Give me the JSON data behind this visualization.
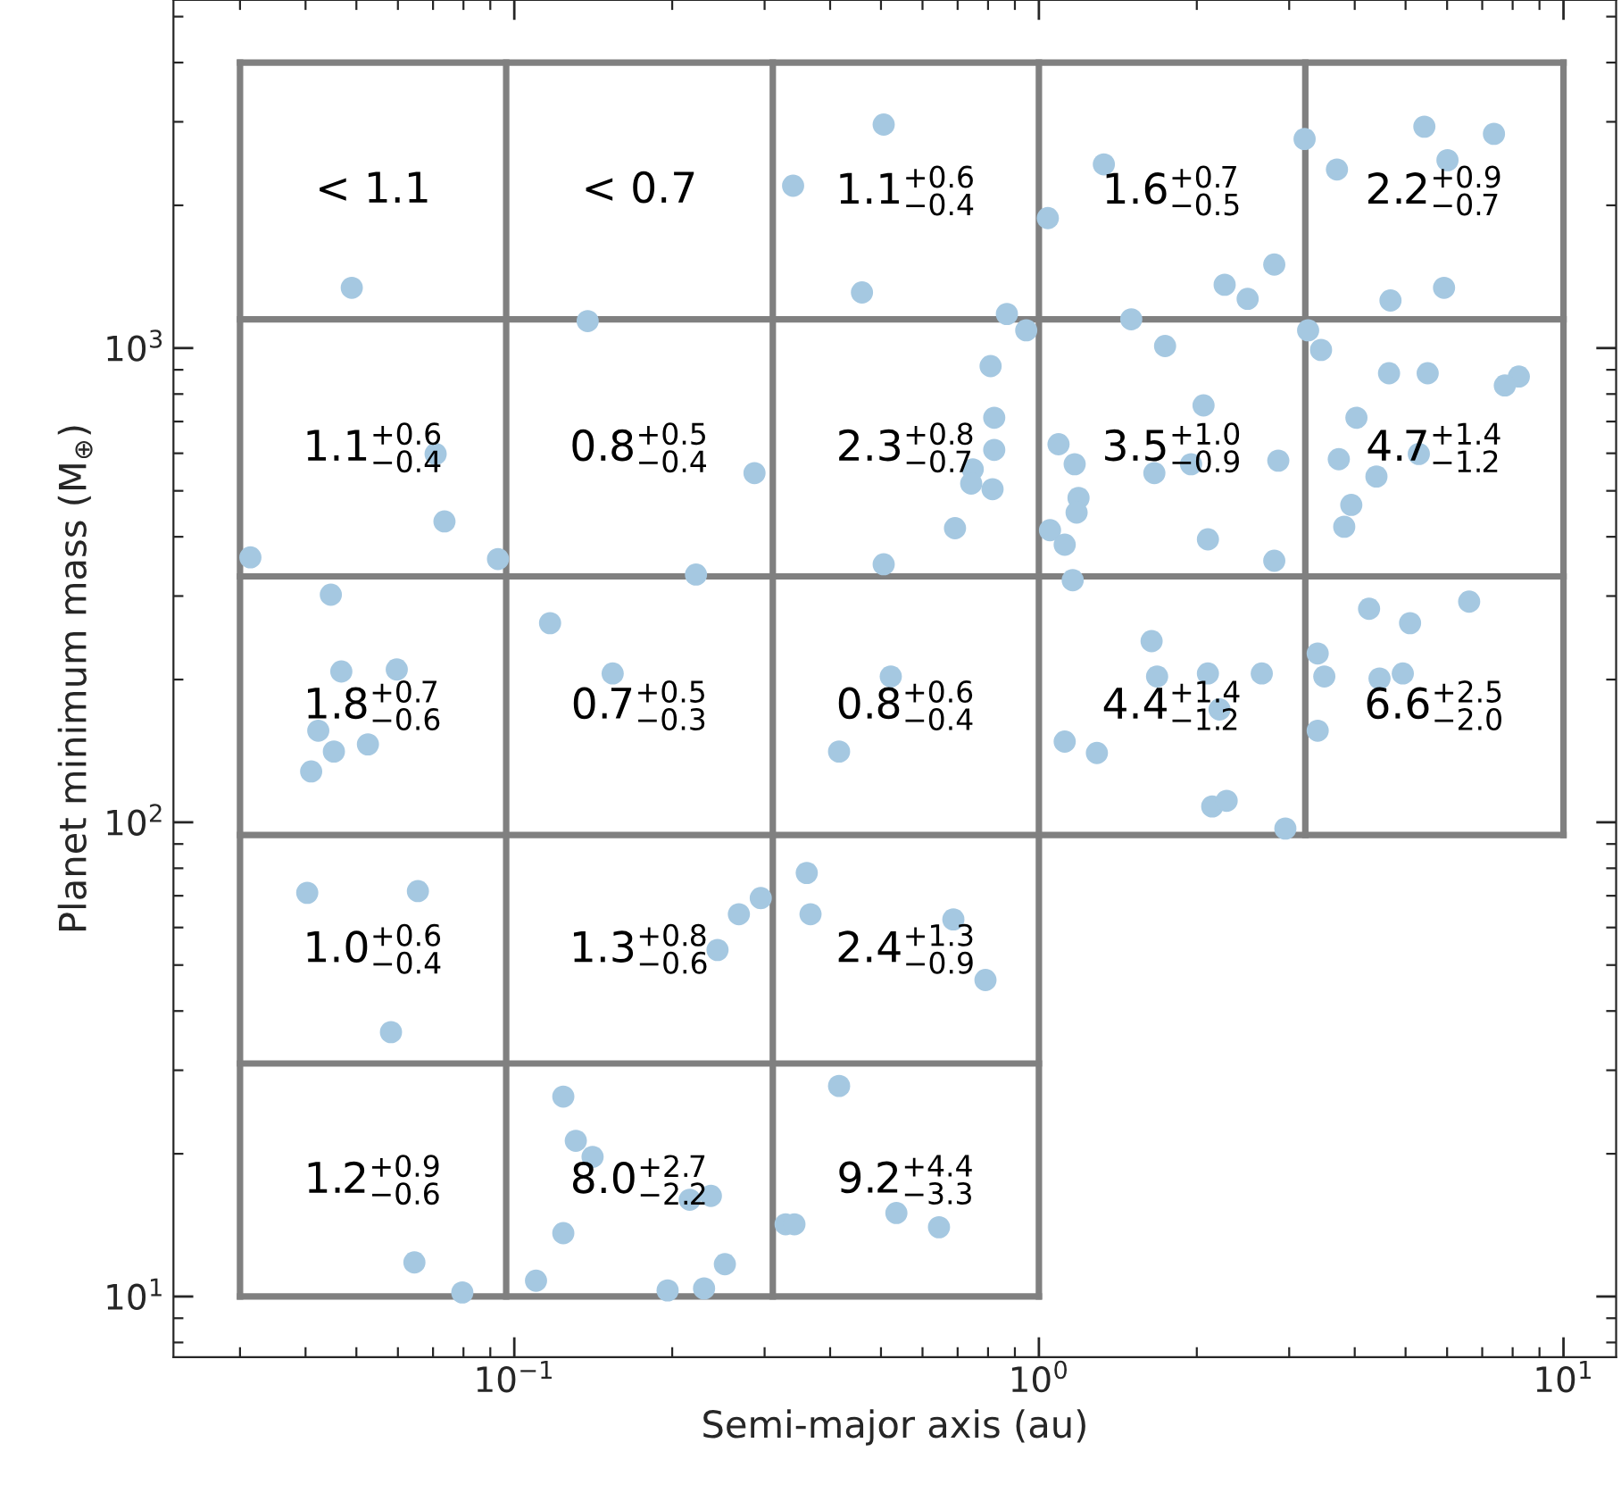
{
  "chart_data": {
    "type": "scatter",
    "xlabel": "Semi-major axis (au)",
    "ylabel": "Planet minimum mass (M$_{⊕}$)",
    "log": "xy",
    "xlim": [
      0.0224,
      12.6
    ],
    "ylim": [
      7.45,
      5420
    ],
    "xticks": [
      {
        "value": 0.1,
        "label": "10$^{−1}$"
      },
      {
        "value": 1,
        "label": "10$^{0}$"
      },
      {
        "value": 10,
        "label": "10$^{1}$"
      }
    ],
    "yticks": [
      {
        "value": 10,
        "label": "10$^{1}$"
      },
      {
        "value": 100,
        "label": "10$^{2}$"
      },
      {
        "value": 1000,
        "label": "10$^{3}$"
      }
    ],
    "series": [
      {
        "marker": "circle",
        "color": "#a5c8e1",
        "x": [
          0.049,
          0.138,
          0.34,
          0.506,
          0.46,
          0.869,
          0.946,
          1.33,
          1.04,
          2.81,
          2.26,
          2.5,
          3.21,
          3.7,
          5.43,
          7.37,
          6.01,
          4.68,
          5.92,
          1.5,
          1.74,
          0.809,
          0.822,
          0.822,
          0.748,
          0.743,
          0.816,
          0.692,
          0.506,
          0.287,
          1.09,
          1.17,
          1.66,
          1.95,
          2.06,
          2.86,
          1.19,
          1.18,
          1.05,
          1.12,
          2.1,
          2.81,
          3.26,
          3.45,
          4.65,
          5.51,
          8.22,
          7.73,
          4.03,
          3.73,
          5.3,
          4.4,
          3.94,
          3.82,
          0.0314,
          0.0736,
          0.0708,
          0.0931,
          0.222,
          0.0447,
          0.0468,
          0.0597,
          0.0423,
          0.0453,
          0.0526,
          0.041,
          0.117,
          0.154,
          0.522,
          0.416,
          1.16,
          1.64,
          1.68,
          2.1,
          2.66,
          2.21,
          1.12,
          1.29,
          2.14,
          2.28,
          2.95,
          4.26,
          6.61,
          5.1,
          3.4,
          3.5,
          4.46,
          4.94,
          3.4,
          0.0403,
          0.0655,
          0.0582,
          0.361,
          0.367,
          0.295,
          0.268,
          0.244,
          0.687,
          0.791,
          0.124,
          0.131,
          0.141,
          0.216,
          0.237,
          0.124,
          0.11,
          0.196,
          0.23,
          0.252,
          0.0645,
          0.0796,
          0.329,
          0.342,
          0.416,
          0.535,
          0.645
        ],
        "values": [
          1340,
          1140,
          2200,
          2960,
          1310,
          1180,
          1090,
          2440,
          1880,
          1500,
          1360,
          1270,
          2760,
          2380,
          2930,
          2830,
          2490,
          1260,
          1340,
          1150,
          1010,
          916,
          713,
          610,
          555,
          518,
          504,
          417,
          350,
          545,
          627,
          569,
          545,
          569,
          757,
          579,
          483,
          450,
          413,
          385,
          395,
          356,
          1090,
          991,
          885,
          885,
          871,
          834,
          713,
          583,
          598,
          536,
          467,
          420,
          362,
          431,
          598,
          359,
          333,
          302,
          208,
          210,
          156,
          141,
          146,
          128,
          263,
          206,
          203,
          141,
          324,
          241,
          203,
          206,
          206,
          173,
          148,
          140,
          108,
          111,
          97,
          282,
          292,
          263,
          227,
          203,
          201,
          206,
          156,
          71.0,
          71.6,
          36.1,
          78.2,
          64.0,
          69.2,
          64.0,
          53.8,
          62.4,
          46.5,
          26.4,
          21.3,
          19.7,
          16.0,
          16.3,
          13.6,
          10.8,
          10.3,
          10.4,
          11.7,
          11.8,
          10.2,
          14.2,
          14.2,
          27.8,
          15.0,
          14.0
        ]
      },
      {
        "type": "line",
        "color": "#808080",
        "x": [
          0.03,
          10
        ],
        "values": [
          4000,
          4000
        ]
      },
      {
        "type": "line",
        "color": "#808080",
        "x": [
          0.03,
          10
        ],
        "values": [
          1150,
          1150
        ]
      },
      {
        "type": "line",
        "color": "#808080",
        "x": [
          0.03,
          10
        ],
        "values": [
          330,
          330
        ]
      },
      {
        "type": "line",
        "color": "#808080",
        "x": [
          0.03,
          10
        ],
        "values": [
          94,
          94
        ]
      },
      {
        "type": "line",
        "color": "#808080",
        "x": [
          0.03,
          1
        ],
        "values": [
          31,
          31
        ]
      },
      {
        "type": "line",
        "color": "#808080",
        "x": [
          0.03,
          1
        ],
        "values": [
          10,
          10
        ]
      },
      {
        "type": "line",
        "color": "#808080",
        "x": [
          0.03,
          0.03
        ],
        "values": [
          10,
          4000
        ]
      },
      {
        "type": "line",
        "color": "#808080",
        "x": [
          0.0965,
          0.0965
        ],
        "values": [
          10,
          4000
        ]
      },
      {
        "type": "line",
        "color": "#808080",
        "x": [
          0.311,
          0.311
        ],
        "values": [
          10,
          4000
        ]
      },
      {
        "type": "line",
        "color": "#808080",
        "x": [
          1,
          1
        ],
        "values": [
          10,
          4000
        ]
      },
      {
        "type": "line",
        "color": "#808080",
        "x": [
          3.22,
          3.22
        ],
        "values": [
          94,
          4000
        ]
      },
      {
        "type": "line",
        "color": "#808080",
        "x": [
          10,
          10
        ],
        "values": [
          94,
          4000
        ]
      }
    ],
    "annotations": [
      "< 1.1",
      "< 0.7",
      "1.1$^{+0.6}$$_{−0.4}$",
      "1.6$^{+0.7}$$_{−0.5}$",
      "2.2$^{+0.9}$$_{−0.7}$",
      "1.1$^{+0.6}$$_{−0.4}$",
      "0.8$^{+0.5}$$_{−0.4}$",
      "2.3$^{+0.8}$$_{−0.7}$",
      "3.5$^{+1.0}$$_{−0.9}$",
      "4.7$^{+1.4}$$_{−1.2}$",
      "1.8$^{+0.7}$$_{−0.6}$",
      "0.7$^{+0.5}$$_{−0.3}$",
      "0.8$^{+0.6}$$_{−0.4}$",
      "4.4$^{+1.4}$$_{−1.2}$",
      "6.6$^{+2.5}$$_{−2.0}$",
      "1.0$^{+0.6}$$_{−0.4}$",
      "1.3$^{+0.8}$$_{−0.6}$",
      "2.4$^{+1.3}$$_{−0.9}$",
      "1.2$^{+0.9}$$_{−0.6}$",
      "8.0$^{+2.7}$$_{−2.2}$",
      "9.2$^{+4.4}$$_{−3.3}$"
    ]
  }
}
